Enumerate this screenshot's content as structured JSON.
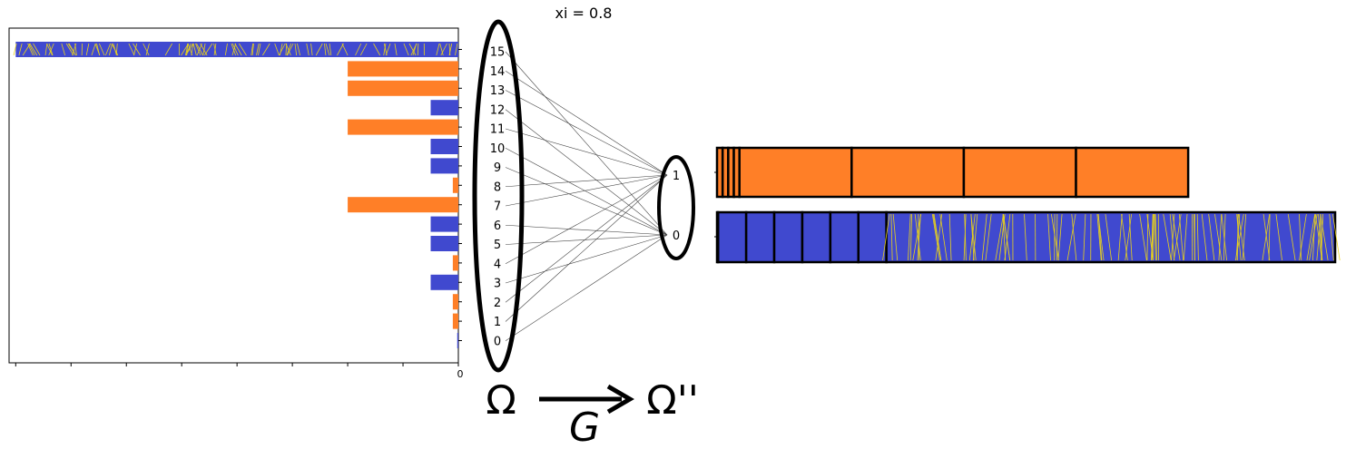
{
  "title": "xi = 0.8",
  "colors": {
    "blue": "#4049cf",
    "orange": "#ff7f27",
    "hatch": "#e8d21b",
    "edge": "#000000"
  },
  "omega": {
    "symbol": "Ω",
    "states": [
      "15",
      "14",
      "13",
      "12",
      "11",
      "10",
      "9",
      "8",
      "7",
      "6",
      "5",
      "4",
      "3",
      "2",
      "1",
      "0"
    ]
  },
  "omega2": {
    "symbol": "Ω''",
    "states": [
      "1",
      "0"
    ]
  },
  "map": {
    "label": "G"
  },
  "bar_axis_label": "0",
  "chart_data": {
    "type": "bar",
    "orientation": "horizontal",
    "categories": [
      "15",
      "14",
      "13",
      "12",
      "11",
      "10",
      "9",
      "8",
      "7",
      "6",
      "5",
      "4",
      "3",
      "2",
      "1",
      "0"
    ],
    "values": [
      40,
      10,
      10,
      2.5,
      10,
      2.5,
      2.5,
      0.5,
      10,
      2.5,
      2.5,
      0.5,
      2.5,
      0.5,
      0.5,
      0.1
    ],
    "colors": [
      "blue",
      "orange",
      "orange",
      "blue",
      "orange",
      "blue",
      "blue",
      "orange",
      "orange",
      "blue",
      "blue",
      "orange",
      "blue",
      "orange",
      "orange",
      "blue"
    ],
    "hatched": [
      "15"
    ],
    "xlim": [
      40.6,
      0
    ]
  },
  "edges": [
    {
      "from": "15",
      "to": "0"
    },
    {
      "from": "14",
      "to": "1"
    },
    {
      "from": "13",
      "to": "1"
    },
    {
      "from": "12",
      "to": "0"
    },
    {
      "from": "11",
      "to": "1"
    },
    {
      "from": "10",
      "to": "0"
    },
    {
      "from": "9",
      "to": "0"
    },
    {
      "from": "8",
      "to": "1"
    },
    {
      "from": "7",
      "to": "1"
    },
    {
      "from": "6",
      "to": "0"
    },
    {
      "from": "5",
      "to": "0"
    },
    {
      "from": "4",
      "to": "1"
    },
    {
      "from": "3",
      "to": "0"
    },
    {
      "from": "2",
      "to": "1"
    },
    {
      "from": "1",
      "to": "1"
    },
    {
      "from": "0",
      "to": "0"
    }
  ],
  "target_bars": [
    {
      "state": "1",
      "color": "orange",
      "segments": [
        0.5,
        0.5,
        0.5,
        0.5,
        10,
        10,
        10,
        10
      ],
      "hatched": []
    },
    {
      "state": "0",
      "color": "blue",
      "segments": [
        0.1,
        2.5,
        2.5,
        2.5,
        2.5,
        2.5,
        2.5,
        40
      ],
      "hatched": [
        7
      ]
    }
  ]
}
